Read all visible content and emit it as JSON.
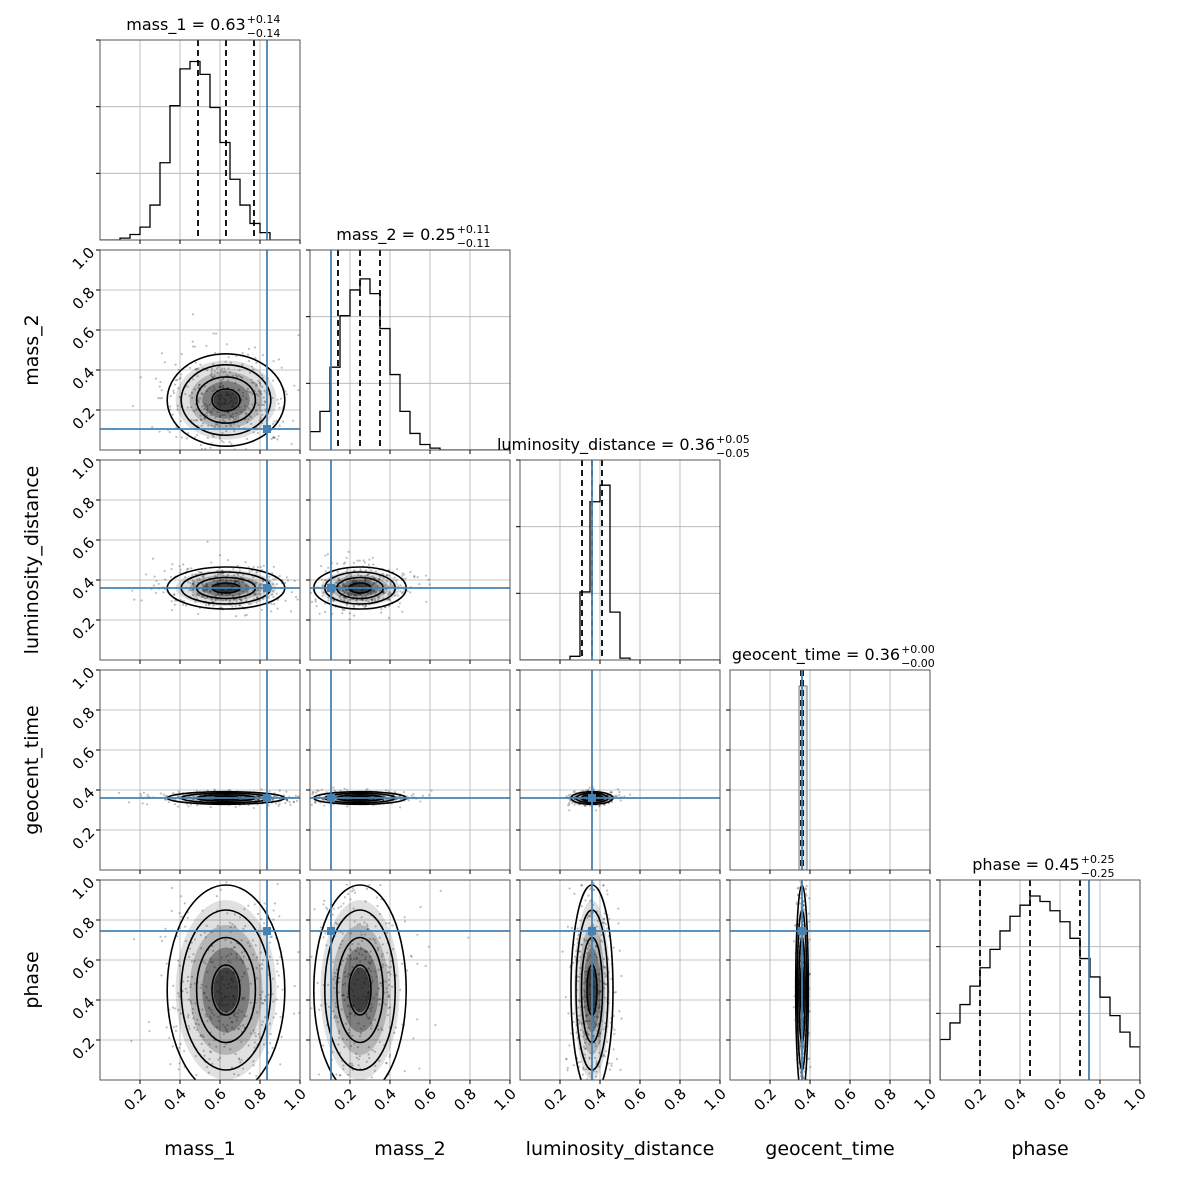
{
  "chart_data": {
    "type": "corner",
    "parameters": [
      "mass_1",
      "mass_2",
      "luminosity_distance",
      "geocent_time",
      "phase"
    ],
    "axis_range": [
      0.0,
      1.0
    ],
    "tick_values": [
      0.2,
      0.4,
      0.6,
      0.8,
      1.0
    ],
    "tick_labels": [
      "0.2",
      "0.4",
      "0.6",
      "0.8",
      "1.0"
    ],
    "grid": true,
    "truth_color": "#4682b4",
    "contour_color": "#000000",
    "truths": {
      "mass_1": 0.835,
      "mass_2": 0.105,
      "luminosity_distance": 0.36,
      "geocent_time": 0.36,
      "phase": 0.745
    },
    "titles": [
      {
        "param": "mass_1",
        "label": "mass_1 = 0.63",
        "plus": "+0.14",
        "minus": "−0.14"
      },
      {
        "param": "mass_2",
        "label": "mass_2 = 0.25",
        "plus": "+0.11",
        "minus": "−0.11"
      },
      {
        "param": "luminosity_distance",
        "label": "luminosity_distance = 0.36",
        "plus": "+0.05",
        "minus": "−0.05"
      },
      {
        "param": "geocent_time",
        "label": "geocent_time = 0.36",
        "plus": "+0.00",
        "minus": "−0.00"
      },
      {
        "param": "phase",
        "label": "phase = 0.45",
        "plus": "+0.25",
        "minus": "−0.25"
      }
    ],
    "quantiles": {
      "mass_1": [
        0.49,
        0.63,
        0.77
      ],
      "mass_2": [
        0.14,
        0.25,
        0.35
      ],
      "luminosity_distance": [
        0.31,
        0.36,
        0.41
      ],
      "geocent_time": [
        0.355,
        0.36,
        0.365
      ],
      "phase": [
        0.2,
        0.45,
        0.7
      ]
    },
    "means": {
      "mass_1": 0.63,
      "mass_2": 0.25,
      "luminosity_distance": 0.36,
      "geocent_time": 0.36,
      "phase": 0.45
    },
    "sigmas": {
      "mass_1": 0.14,
      "mass_2": 0.11,
      "luminosity_distance": 0.05,
      "geocent_time": 0.005,
      "phase": 0.25
    },
    "histograms": {
      "mass_1": [
        0.0,
        0.0,
        0.01,
        0.03,
        0.07,
        0.19,
        0.42,
        0.73,
        0.93,
        0.97,
        0.9,
        0.72,
        0.53,
        0.33,
        0.19,
        0.09,
        0.04,
        0.0,
        0.0,
        0.0
      ],
      "mass_2": [
        0.1,
        0.21,
        0.45,
        0.73,
        0.87,
        0.93,
        0.85,
        0.66,
        0.41,
        0.21,
        0.09,
        0.03,
        0.01,
        0.0,
        0.0,
        0.0,
        0.0,
        0.0,
        0.0,
        0.0
      ],
      "luminosity_distance": [
        0.0,
        0.0,
        0.0,
        0.0,
        0.0,
        0.02,
        0.37,
        0.86,
        0.95,
        0.26,
        0.01,
        0.0,
        0.0,
        0.0,
        0.0,
        0.0,
        0.0,
        0.0,
        0.0,
        0.0
      ],
      "geocent_time": [
        0.0,
        0.0,
        0.0,
        0.0,
        0.0,
        0.0,
        0.0,
        0.91,
        0.0,
        0.0,
        0.0,
        0.0,
        0.0,
        0.0,
        0.0,
        0.0,
        0.0,
        0.0,
        0.0,
        0.0
      ],
      "phase": [
        0.22,
        0.31,
        0.41,
        0.51,
        0.61,
        0.71,
        0.81,
        0.89,
        0.95,
        1.0,
        0.97,
        0.92,
        0.86,
        0.77,
        0.66,
        0.56,
        0.45,
        0.35,
        0.26,
        0.18
      ]
    }
  }
}
